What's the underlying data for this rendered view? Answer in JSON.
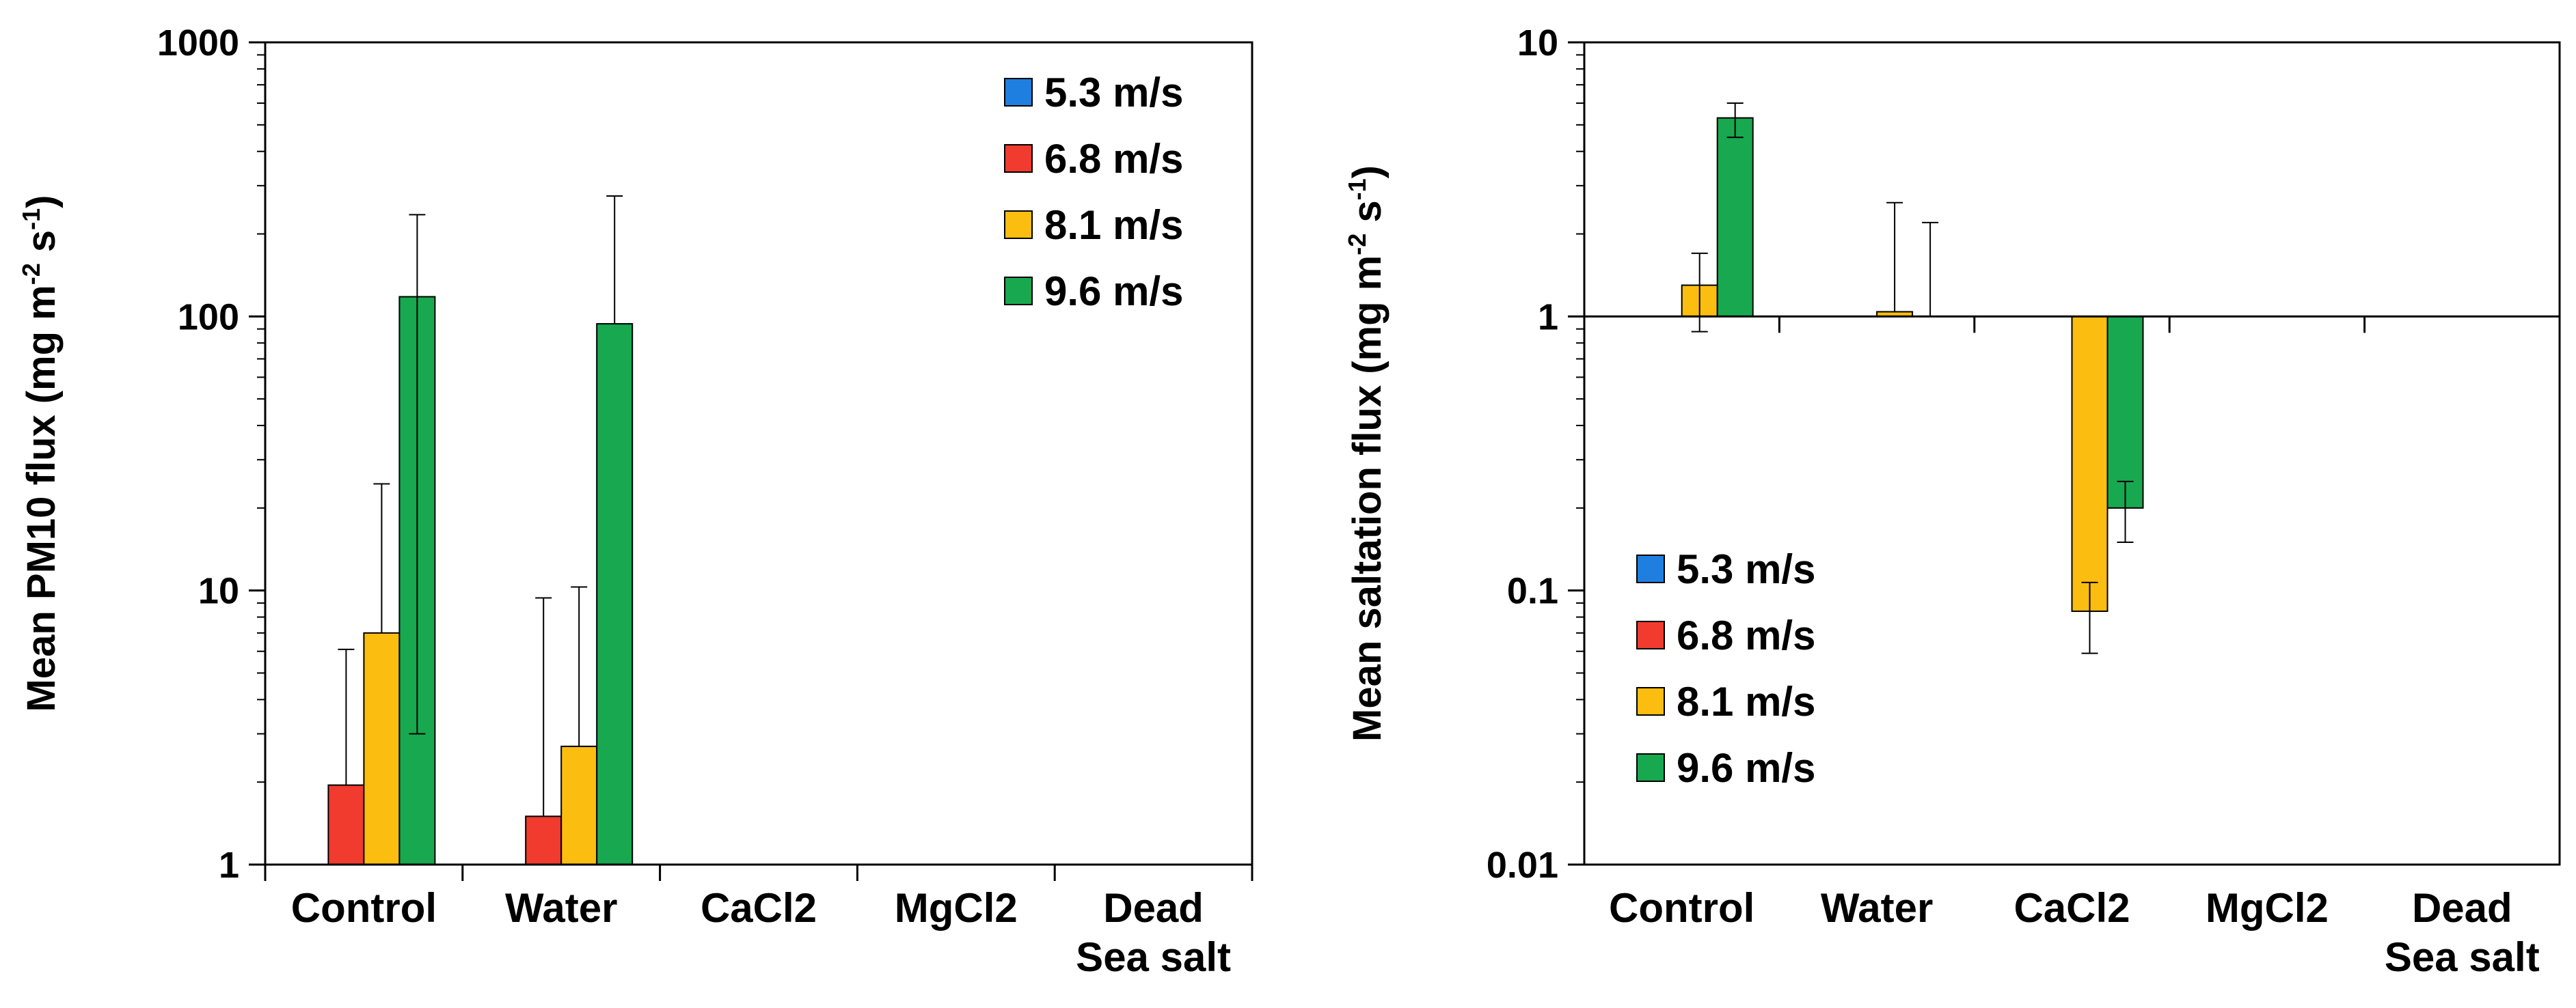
{
  "colors": {
    "5.3 m/s": "#1e7fe0",
    "6.8 m/s": "#f03b2e",
    "8.1 m/s": "#fbbd0f",
    "9.6 m/s": "#18a84f"
  },
  "chart_data": [
    {
      "type": "bar",
      "scale": "log",
      "title": "",
      "xlabel": "",
      "ylabel": "Mean PM10 flux (mg m-2 s-1)",
      "ylabel_parts": {
        "main": "Mean PM10 flux (mg m",
        "sup1": "-2",
        "mid": " s",
        "sup2": "-1",
        "end": ")"
      },
      "ylim": [
        1,
        1000
      ],
      "yticks": [
        1,
        10,
        100,
        1000
      ],
      "ytick_labels": [
        "1",
        "10",
        "100",
        "1000"
      ],
      "baseline": 1,
      "categories": [
        "Control",
        "Water",
        "CaCl2",
        "MgCl2",
        "Dead Sea salt"
      ],
      "category_lines": [
        [
          "Control"
        ],
        [
          "Water"
        ],
        [
          "CaCl2"
        ],
        [
          "MgCl2"
        ],
        [
          "Dead",
          "Sea salt"
        ]
      ],
      "legend_position": "top-right",
      "series": [
        {
          "name": "5.3 m/s",
          "values": [
            null,
            null,
            null,
            null,
            null
          ],
          "err_low": [
            null,
            null,
            null,
            null,
            null
          ],
          "err_high": [
            null,
            null,
            null,
            null,
            null
          ]
        },
        {
          "name": "6.8 m/s",
          "values": [
            1.95,
            1.5,
            null,
            null,
            null
          ],
          "err_low": [
            null,
            null,
            null,
            null,
            null
          ],
          "err_high": [
            6.1,
            9.4,
            null,
            null,
            null
          ]
        },
        {
          "name": "8.1 m/s",
          "values": [
            7.0,
            2.7,
            null,
            null,
            null
          ],
          "err_low": [
            null,
            null,
            null,
            null,
            null
          ],
          "err_high": [
            24.5,
            10.3,
            null,
            null,
            null
          ]
        },
        {
          "name": "9.6 m/s",
          "values": [
            118,
            94,
            null,
            null,
            null
          ],
          "err_low": [
            3.0,
            null,
            null,
            null,
            null
          ],
          "err_high": [
            235,
            275,
            null,
            null,
            null
          ]
        }
      ]
    },
    {
      "type": "bar",
      "scale": "log",
      "title": "",
      "xlabel": "",
      "ylabel": "Mean saltation flux (mg m-2 s-1)",
      "ylabel_parts": {
        "main": "Mean saltation flux (mg m",
        "sup1": "-2",
        "mid": " s",
        "sup2": "-1",
        "end": ")"
      },
      "ylim": [
        0.01,
        10
      ],
      "yticks": [
        0.01,
        0.1,
        1,
        10
      ],
      "ytick_labels": [
        "0.01",
        "0.1",
        "1",
        "10"
      ],
      "baseline": 1,
      "categories": [
        "Control",
        "Water",
        "CaCl2",
        "MgCl2",
        "Dead Sea salt"
      ],
      "category_lines": [
        [
          "Control"
        ],
        [
          "Water"
        ],
        [
          "CaCl2"
        ],
        [
          "MgCl2"
        ],
        [
          "Dead",
          "Sea salt"
        ]
      ],
      "legend_position": "bottom-left",
      "series": [
        {
          "name": "5.3 m/s",
          "values": [
            null,
            null,
            null,
            null,
            null
          ],
          "err_low": [
            null,
            null,
            null,
            null,
            null
          ],
          "err_high": [
            null,
            null,
            null,
            null,
            null
          ]
        },
        {
          "name": "6.8 m/s",
          "values": [
            null,
            null,
            null,
            null,
            null
          ],
          "err_low": [
            null,
            null,
            null,
            null,
            null
          ],
          "err_high": [
            null,
            null,
            null,
            null,
            null
          ]
        },
        {
          "name": "8.1 m/s",
          "values": [
            1.3,
            1.04,
            0.084,
            null,
            null
          ],
          "err_low": [
            0.88,
            null,
            0.059,
            null,
            null
          ],
          "err_high": [
            1.7,
            2.6,
            0.107,
            null,
            null
          ]
        },
        {
          "name": "9.6 m/s",
          "values": [
            5.3,
            null,
            0.2,
            null,
            null
          ],
          "err_low": [
            4.5,
            null,
            0.15,
            null,
            null
          ],
          "err_high": [
            6.0,
            2.2,
            0.25,
            null,
            null
          ]
        }
      ]
    }
  ]
}
